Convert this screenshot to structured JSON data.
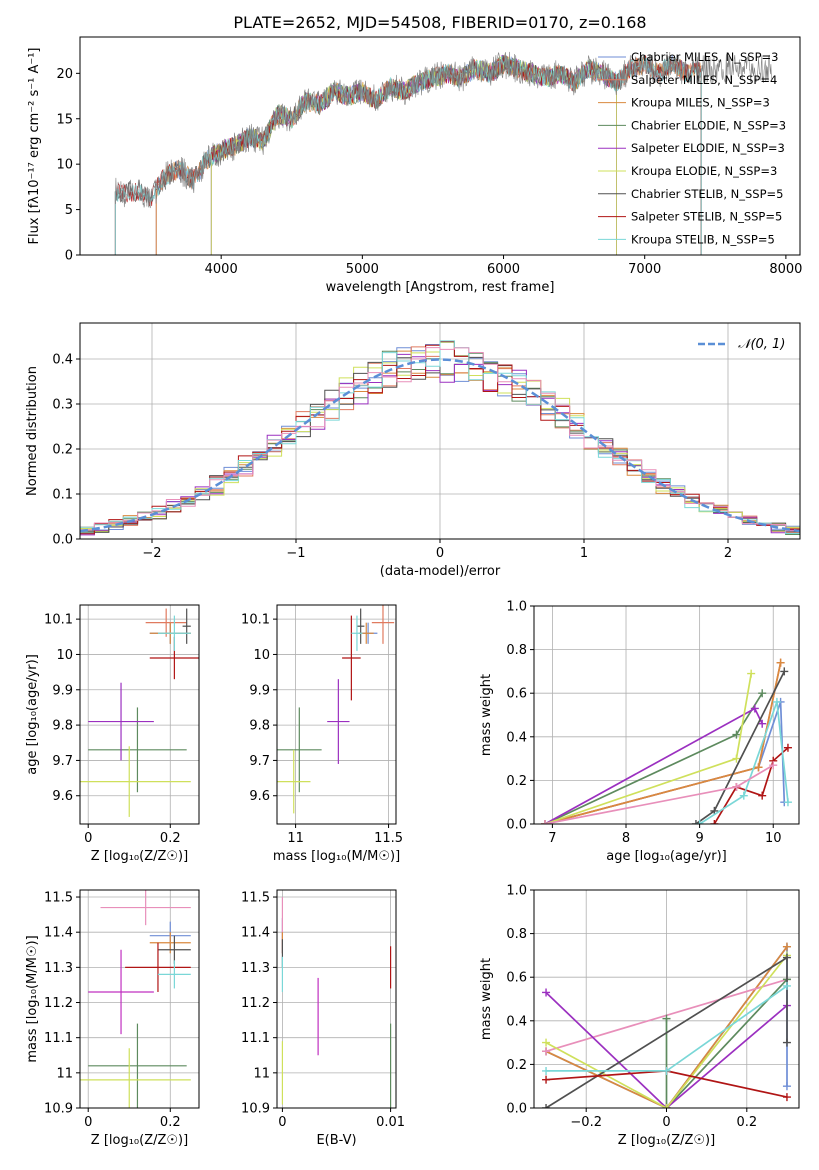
{
  "figure": {
    "title": "PLATE=2652, MJD=54508, FIBERID=0170, z=0.168"
  },
  "chart_data": [
    {
      "type": "line",
      "id": "spectrum",
      "xlabel": "wavelength [Angstrom, rest frame]",
      "ylabel": "Flux [fλ10⁻¹⁷ erg cm⁻² s⁻¹ A⁻¹]",
      "xlim": [
        3000,
        8100
      ],
      "ylim": [
        0,
        24
      ],
      "xticks": [
        4000,
        5000,
        6000,
        7000,
        8000
      ],
      "yticks": [
        0,
        5,
        10,
        15,
        20
      ],
      "grid": false,
      "legend_position": "right",
      "data_spectrum": {
        "x": [
          3250,
          3300,
          3400,
          3500,
          3550,
          3600,
          3700,
          3800,
          3900,
          4000,
          4100,
          4200,
          4300,
          4400,
          4500,
          4600,
          4700,
          4800,
          4900,
          5000,
          5100,
          5200,
          5300,
          5400,
          5500,
          5600,
          5700,
          5800,
          5900,
          6000,
          6100,
          6200,
          6300,
          6400,
          6500,
          6600,
          6700,
          6800,
          6900,
          7000,
          7100,
          7200,
          7300,
          7400
        ],
        "y": [
          7.0,
          6.8,
          7.0,
          6.3,
          7.5,
          8.6,
          9.5,
          8.2,
          10.5,
          11.5,
          12.0,
          13.0,
          12.5,
          15.5,
          15.0,
          17.0,
          16.5,
          18.0,
          17.5,
          18.0,
          17.0,
          18.5,
          18.0,
          19.0,
          19.5,
          20.0,
          19.5,
          20.5,
          20.0,
          21.0,
          20.5,
          20.0,
          19.5,
          20.0,
          19.0,
          20.5,
          20.0,
          19.0,
          20.5,
          21.0,
          20.0,
          21.0,
          20.0,
          20.5
        ]
      },
      "series": [
        {
          "name": "Chabrier MILES, N_SSP=3",
          "color": "#6f8ed6",
          "start": 3540,
          "end": 7400
        },
        {
          "name": "Salpeter MILES, N_SSP=4",
          "color": "#e07a5f",
          "start": 3540,
          "end": 7400
        },
        {
          "name": "Kroupa MILES, N_SSP=3",
          "color": "#d9893f",
          "start": 3540,
          "end": 7400
        },
        {
          "name": "Chabrier ELODIE, N_SSP=3",
          "color": "#5d8a5e",
          "start": 3930,
          "end": 6800
        },
        {
          "name": "Salpeter ELODIE, N_SSP=3",
          "color": "#9b30c0",
          "start": 3930,
          "end": 6800
        },
        {
          "name": "Kroupa ELODIE, N_SSP=3",
          "color": "#cfe05b",
          "start": 3930,
          "end": 6800
        },
        {
          "name": "Chabrier STELIB, N_SSP=5",
          "color": "#505050",
          "start": 3250,
          "end": 7400
        },
        {
          "name": "Salpeter STELIB, N_SSP=5",
          "color": "#b01515",
          "start": 3250,
          "end": 7400
        },
        {
          "name": "Kroupa STELIB, N_SSP=5",
          "color": "#7ad7d7",
          "start": 3250,
          "end": 7400
        }
      ]
    },
    {
      "type": "line",
      "id": "residuals",
      "xlabel": "(data-model)/error",
      "ylabel": "Normed distribution",
      "xlim": [
        -2.5,
        2.5
      ],
      "ylim": [
        0,
        0.48
      ],
      "xticks": [
        -2,
        -1,
        0,
        1,
        2
      ],
      "yticks": [
        0.0,
        0.1,
        0.2,
        0.3,
        0.4
      ],
      "grid": true,
      "legend_position": "top-right",
      "legend": "𝒩(0, 1)",
      "gaussian": {
        "mean": 0,
        "sigma": 1,
        "color": "#5b8fd6"
      }
    },
    {
      "type": "scatter",
      "id": "age-vs-Z",
      "xlabel": "Z [log₁₀(Z/Z☉)]",
      "ylabel": "age  [log₁₀(age/yr)]",
      "xlim": [
        -0.02,
        0.27
      ],
      "ylim": [
        9.52,
        10.14
      ],
      "xticks": [
        0.0,
        0.2
      ],
      "yticks": [
        9.6,
        9.7,
        9.8,
        9.9,
        10.0,
        10.1
      ],
      "grid": true,
      "points": [
        {
          "x": 0.2,
          "y": 10.06,
          "xerr": 0.05,
          "yerr": 0.03,
          "color": "#6f8ed6"
        },
        {
          "x": 0.19,
          "y": 10.09,
          "xerr": 0.05,
          "yerr": 0.04,
          "color": "#e07a5f"
        },
        {
          "x": 0.2,
          "y": 10.06,
          "xerr": 0.05,
          "yerr": 0.03,
          "color": "#d9893f"
        },
        {
          "x": 0.12,
          "y": 9.73,
          "xerr": 0.12,
          "yerr": 0.12,
          "color": "#5d8a5e"
        },
        {
          "x": 0.08,
          "y": 9.81,
          "xerr": 0.08,
          "yerr": 0.11,
          "color": "#9b30c0"
        },
        {
          "x": 0.1,
          "y": 9.64,
          "xerr": 0.15,
          "yerr": 0.1,
          "color": "#cfe05b"
        },
        {
          "x": 0.24,
          "y": 10.08,
          "xerr": 0.01,
          "yerr": 0.05,
          "color": "#505050"
        },
        {
          "x": 0.21,
          "y": 9.99,
          "xerr": 0.06,
          "yerr": 0.06,
          "color": "#b01515"
        },
        {
          "x": 0.21,
          "y": 10.06,
          "xerr": 0.04,
          "yerr": 0.05,
          "color": "#7ad7d7"
        }
      ]
    },
    {
      "type": "scatter",
      "id": "age-vs-mass",
      "xlabel": "mass [log₁₀(M/M☉)]",
      "ylabel": "",
      "xlim": [
        10.9,
        11.54
      ],
      "ylim": [
        9.52,
        10.14
      ],
      "xticks": [
        11.0,
        11.5
      ],
      "yticks": [
        9.6,
        9.7,
        9.8,
        9.9,
        10.0,
        10.1
      ],
      "grid": true,
      "points": [
        {
          "x": 11.39,
          "y": 10.06,
          "xerr": 0.05,
          "yerr": 0.03,
          "color": "#6f8ed6"
        },
        {
          "x": 11.47,
          "y": 10.09,
          "xerr": 0.06,
          "yerr": 0.06,
          "color": "#e07a5f"
        },
        {
          "x": 11.38,
          "y": 10.06,
          "xerr": 0.04,
          "yerr": 0.03,
          "color": "#d9893f"
        },
        {
          "x": 11.02,
          "y": 9.73,
          "xerr": 0.12,
          "yerr": 0.12,
          "color": "#5d8a5e"
        },
        {
          "x": 11.23,
          "y": 9.81,
          "xerr": 0.06,
          "yerr": 0.12,
          "color": "#9b30c0"
        },
        {
          "x": 10.99,
          "y": 9.64,
          "xerr": 0.09,
          "yerr": 0.09,
          "color": "#cfe05b"
        },
        {
          "x": 11.35,
          "y": 10.08,
          "xerr": 0.02,
          "yerr": 0.05,
          "color": "#505050"
        },
        {
          "x": 11.3,
          "y": 9.99,
          "xerr": 0.05,
          "yerr": 0.12,
          "color": "#b01515"
        },
        {
          "x": 11.33,
          "y": 10.06,
          "xerr": 0.03,
          "yerr": 0.05,
          "color": "#7ad7d7"
        }
      ]
    },
    {
      "type": "line",
      "id": "massweight-vs-age",
      "xlabel": "age  [log₁₀(age/yr)]",
      "ylabel": "mass weight",
      "xlim": [
        6.75,
        10.35
      ],
      "ylim": [
        0,
        1.0
      ],
      "xticks": [
        7,
        8,
        9,
        10
      ],
      "yticks": [
        0.0,
        0.2,
        0.4,
        0.6,
        0.8,
        1.0
      ],
      "grid": true,
      "series": [
        {
          "color": "#6f8ed6",
          "x": [
            6.9,
            9.8,
            10.1,
            10.15
          ],
          "y": [
            0.0,
            0.26,
            0.56,
            0.1
          ]
        },
        {
          "color": "#e07a5f",
          "x": [
            6.9,
            9.8,
            10.1
          ],
          "y": [
            0.0,
            0.26,
            0.74
          ]
        },
        {
          "color": "#d9893f",
          "x": [
            6.9,
            9.8,
            10.1
          ],
          "y": [
            0.0,
            0.26,
            0.74
          ]
        },
        {
          "color": "#5d8a5e",
          "x": [
            6.9,
            9.5,
            9.85
          ],
          "y": [
            0.0,
            0.41,
            0.6
          ]
        },
        {
          "color": "#9b30c0",
          "x": [
            6.9,
            9.75,
            9.85
          ],
          "y": [
            0.0,
            0.53,
            0.46
          ]
        },
        {
          "color": "#cfe05b",
          "x": [
            6.9,
            9.5,
            9.7
          ],
          "y": [
            0.0,
            0.3,
            0.69
          ]
        },
        {
          "color": "#505050",
          "x": [
            8.95,
            9.2,
            10.15
          ],
          "y": [
            0.0,
            0.06,
            0.7
          ]
        },
        {
          "color": "#b01515",
          "x": [
            9.2,
            9.5,
            9.85,
            10.0,
            10.2
          ],
          "y": [
            0.0,
            0.17,
            0.13,
            0.29,
            0.35
          ]
        },
        {
          "color": "#7ad7d7",
          "x": [
            9.0,
            9.6,
            10.05,
            10.2
          ],
          "y": [
            0.0,
            0.13,
            0.56,
            0.1
          ]
        },
        {
          "color": "#e88fba",
          "x": [
            6.9,
            9.5,
            10.0
          ],
          "y": [
            0.0,
            0.17,
            0.27
          ]
        }
      ]
    },
    {
      "type": "scatter",
      "id": "mass-vs-Z",
      "xlabel": "Z [log₁₀(Z/Z☉)]",
      "ylabel": "mass [log₁₀(M/M☉)]",
      "xlim": [
        -0.02,
        0.27
      ],
      "ylim": [
        10.9,
        11.52
      ],
      "xticks": [
        0.0,
        0.2
      ],
      "yticks": [
        10.9,
        11.0,
        11.1,
        11.2,
        11.3,
        11.4,
        11.5
      ],
      "grid": true,
      "points": [
        {
          "x": 0.2,
          "y": 11.39,
          "xerr": 0.05,
          "yerr": 0.04,
          "color": "#6f8ed6"
        },
        {
          "x": 0.14,
          "y": 11.47,
          "xerr": 0.11,
          "yerr": 0.05,
          "color": "#e88fba"
        },
        {
          "x": 0.2,
          "y": 11.37,
          "xerr": 0.05,
          "yerr": 0.03,
          "color": "#d9893f"
        },
        {
          "x": 0.12,
          "y": 11.02,
          "xerr": 0.12,
          "yerr": 0.12,
          "color": "#5d8a5e"
        },
        {
          "x": 0.08,
          "y": 11.23,
          "xerr": 0.08,
          "yerr": 0.12,
          "color": "#c030c0"
        },
        {
          "x": 0.1,
          "y": 10.98,
          "xerr": 0.15,
          "yerr": 0.09,
          "color": "#cfe05b"
        },
        {
          "x": 0.21,
          "y": 11.35,
          "xerr": 0.04,
          "yerr": 0.04,
          "color": "#505050"
        },
        {
          "x": 0.17,
          "y": 11.3,
          "xerr": 0.08,
          "yerr": 0.07,
          "color": "#b01515"
        },
        {
          "x": 0.21,
          "y": 11.28,
          "xerr": 0.04,
          "yerr": 0.04,
          "color": "#7ad7d7"
        }
      ]
    },
    {
      "type": "scatter",
      "id": "mass-vs-EBV",
      "xlabel": "E(B-V)",
      "ylabel": "",
      "xlim": [
        -0.0005,
        0.0105
      ],
      "ylim": [
        10.9,
        11.52
      ],
      "xticks": [
        0.0,
        0.01
      ],
      "yticks": [
        10.9,
        11.0,
        11.1,
        11.2,
        11.3,
        11.4,
        11.5
      ],
      "grid": true,
      "points": [
        {
          "x": 0.0,
          "y": 11.39,
          "yerr": 0.05,
          "color": "#6f8ed6"
        },
        {
          "x": 0.0,
          "y": 11.42,
          "yerr": 0.08,
          "color": "#e88fba"
        },
        {
          "x": 0.0,
          "y": 11.37,
          "yerr": 0.03,
          "color": "#d9893f"
        },
        {
          "x": 0.01,
          "y": 11.02,
          "yerr": 0.12,
          "color": "#5d8a5e"
        },
        {
          "x": 0.0033,
          "y": 11.16,
          "yerr": 0.11,
          "color": "#c030c0"
        },
        {
          "x": 0.0,
          "y": 11.0,
          "yerr": 0.09,
          "color": "#cfe05b"
        },
        {
          "x": 0.0,
          "y": 11.34,
          "yerr": 0.04,
          "color": "#505050"
        },
        {
          "x": 0.01,
          "y": 11.3,
          "yerr": 0.06,
          "color": "#b01515"
        },
        {
          "x": 0.0,
          "y": 11.28,
          "yerr": 0.05,
          "color": "#7ad7d7"
        }
      ]
    },
    {
      "type": "line",
      "id": "massweight-vs-Z",
      "xlabel": "Z [log₁₀(Z/Z☉)]",
      "ylabel": "mass weight",
      "xlim": [
        -0.33,
        0.33
      ],
      "ylim": [
        0,
        1.0
      ],
      "xticks": [
        -0.2,
        0.0,
        0.2
      ],
      "yticks": [
        0.0,
        0.2,
        0.4,
        0.6,
        0.8,
        1.0
      ],
      "grid": true,
      "series": [
        {
          "color": "#6f8ed6",
          "x": [
            -0.3,
            0.0,
            0.3,
            0.3
          ],
          "y": [
            0.26,
            0.0,
            0.74,
            0.1
          ]
        },
        {
          "color": "#d9893f",
          "x": [
            -0.3,
            0.0,
            0.3
          ],
          "y": [
            0.26,
            0.0,
            0.74
          ]
        },
        {
          "color": "#e88fba",
          "x": [
            -0.3,
            0.3
          ],
          "y": [
            0.26,
            0.59
          ]
        },
        {
          "color": "#5d8a5e",
          "x": [
            0.0,
            0.0,
            0.3
          ],
          "y": [
            0.41,
            0.0,
            0.59
          ]
        },
        {
          "color": "#9b30c0",
          "x": [
            -0.3,
            0.0,
            0.3
          ],
          "y": [
            0.53,
            0.0,
            0.47
          ]
        },
        {
          "color": "#cfe05b",
          "x": [
            -0.3,
            0.0,
            0.3
          ],
          "y": [
            0.3,
            0.0,
            0.7
          ]
        },
        {
          "color": "#505050",
          "x": [
            -0.3,
            0.3,
            0.3
          ],
          "y": [
            0.0,
            0.69,
            0.3
          ]
        },
        {
          "color": "#b01515",
          "x": [
            -0.3,
            0.0,
            0.3
          ],
          "y": [
            0.13,
            0.17,
            0.05
          ]
        },
        {
          "color": "#7ad7d7",
          "x": [
            -0.3,
            0.0,
            0.3
          ],
          "y": [
            0.17,
            0.17,
            0.56
          ]
        }
      ]
    }
  ]
}
